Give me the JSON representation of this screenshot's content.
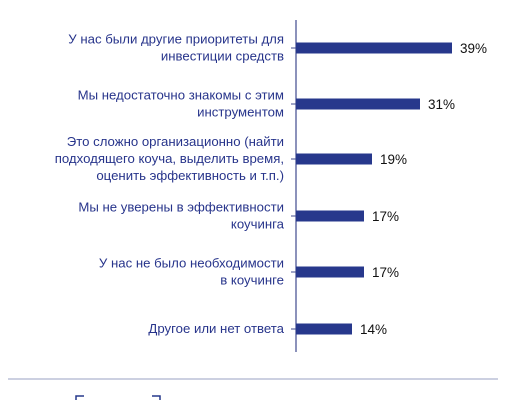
{
  "chart_data": {
    "type": "bar",
    "orientation": "horizontal",
    "categories": [
      [
        "У нас были другие приоритеты для",
        "инвестиции средств"
      ],
      [
        "Мы недостаточно знакомы с этим",
        "инструментом"
      ],
      [
        "Это сложно организационно (найти",
        "подходящего коуча, выделить время,",
        "оценить эффективность и т.п.)"
      ],
      [
        "Мы не уверены в эффективности",
        "коучинга"
      ],
      [
        "У нас не было необходимости",
        "в коучинге"
      ],
      [
        "Другое или нет ответа"
      ]
    ],
    "values": [
      39,
      31,
      19,
      17,
      17,
      14
    ],
    "value_labels": [
      "39%",
      "31%",
      "19%",
      "17%",
      "17%",
      "14%"
    ],
    "unit": "%",
    "xlim": [
      0,
      50
    ],
    "colors": {
      "bar": "#27388c",
      "label": "#27348b",
      "axis": "#3f4a8e",
      "value_text": "#111111"
    }
  }
}
